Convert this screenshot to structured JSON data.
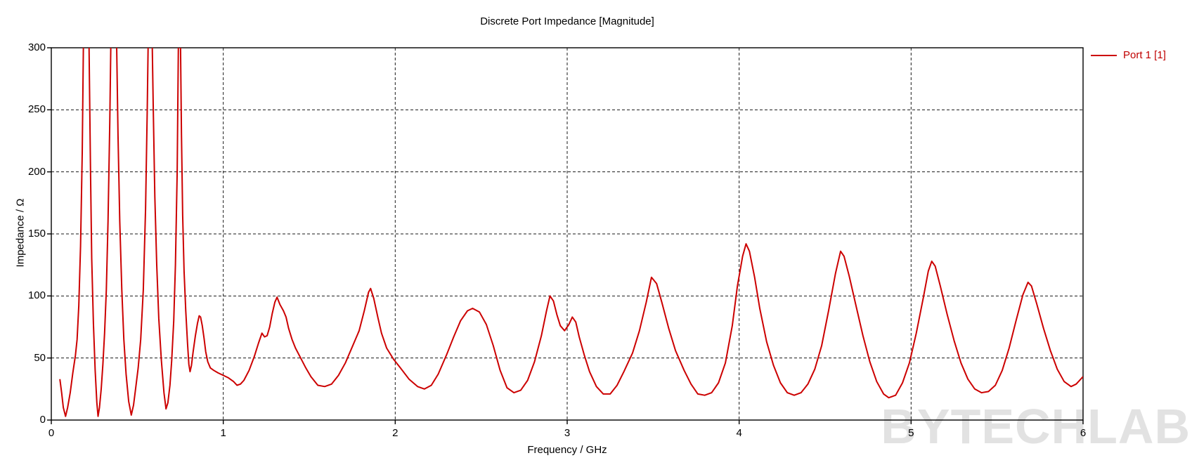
{
  "title": "Discrete Port Impedance [Magnitude]",
  "watermark": "BYTECHLAB",
  "watermark_color": "#e2e2e2",
  "legend": {
    "label": "Port 1 [1]",
    "text_color": "#c00000"
  },
  "chart_data": {
    "type": "line",
    "title": "Discrete Port Impedance [Magnitude]",
    "xlabel": "Frequency / GHz",
    "ylabel": "Impedance / Ω",
    "xlim": [
      0,
      6
    ],
    "ylim": [
      0,
      300
    ],
    "xticks": [
      0,
      1,
      2,
      3,
      4,
      5,
      6
    ],
    "yticks": [
      0,
      50,
      100,
      150,
      200,
      250,
      300
    ],
    "grid": true,
    "grid_style": "dashed",
    "grid_color": "#1a1a1a",
    "axis_color": "#000000",
    "legend_position": "top-right-outside",
    "series": [
      {
        "name": "Port 1 [1]",
        "color": "#cc0000",
        "points": [
          [
            0.05,
            33
          ],
          [
            0.06,
            22
          ],
          [
            0.07,
            10
          ],
          [
            0.083,
            3
          ],
          [
            0.095,
            10
          ],
          [
            0.11,
            22
          ],
          [
            0.125,
            38
          ],
          [
            0.14,
            52
          ],
          [
            0.15,
            65
          ],
          [
            0.16,
            92
          ],
          [
            0.17,
            140
          ],
          [
            0.18,
            215
          ],
          [
            0.188,
            320
          ],
          [
            0.218,
            320
          ],
          [
            0.228,
            200
          ],
          [
            0.235,
            130
          ],
          [
            0.245,
            78
          ],
          [
            0.255,
            40
          ],
          [
            0.265,
            14
          ],
          [
            0.272,
            3
          ],
          [
            0.28,
            10
          ],
          [
            0.29,
            25
          ],
          [
            0.3,
            45
          ],
          [
            0.31,
            70
          ],
          [
            0.32,
            105
          ],
          [
            0.33,
            160
          ],
          [
            0.34,
            240
          ],
          [
            0.348,
            320
          ],
          [
            0.378,
            320
          ],
          [
            0.388,
            230
          ],
          [
            0.398,
            160
          ],
          [
            0.41,
            105
          ],
          [
            0.422,
            65
          ],
          [
            0.435,
            37
          ],
          [
            0.45,
            15
          ],
          [
            0.465,
            4
          ],
          [
            0.478,
            12
          ],
          [
            0.49,
            25
          ],
          [
            0.505,
            42
          ],
          [
            0.52,
            65
          ],
          [
            0.535,
            105
          ],
          [
            0.548,
            170
          ],
          [
            0.558,
            250
          ],
          [
            0.565,
            320
          ],
          [
            0.585,
            320
          ],
          [
            0.593,
            250
          ],
          [
            0.602,
            180
          ],
          [
            0.613,
            125
          ],
          [
            0.625,
            82
          ],
          [
            0.64,
            48
          ],
          [
            0.655,
            22
          ],
          [
            0.667,
            9
          ],
          [
            0.678,
            14
          ],
          [
            0.69,
            28
          ],
          [
            0.7,
            48
          ],
          [
            0.712,
            80
          ],
          [
            0.722,
            125
          ],
          [
            0.732,
            200
          ],
          [
            0.74,
            320
          ],
          [
            0.75,
            320
          ],
          [
            0.757,
            230
          ],
          [
            0.764,
            165
          ],
          [
            0.772,
            120
          ],
          [
            0.782,
            88
          ],
          [
            0.792,
            62
          ],
          [
            0.8,
            45
          ],
          [
            0.807,
            39
          ],
          [
            0.815,
            44
          ],
          [
            0.825,
            55
          ],
          [
            0.838,
            68
          ],
          [
            0.85,
            78
          ],
          [
            0.86,
            84
          ],
          [
            0.868,
            83
          ],
          [
            0.878,
            76
          ],
          [
            0.888,
            66
          ],
          [
            0.898,
            55
          ],
          [
            0.91,
            47
          ],
          [
            0.925,
            42
          ],
          [
            0.945,
            40
          ],
          [
            0.97,
            38
          ],
          [
            1.0,
            36
          ],
          [
            1.03,
            34
          ],
          [
            1.06,
            31
          ],
          [
            1.08,
            28
          ],
          [
            1.1,
            29
          ],
          [
            1.12,
            32
          ],
          [
            1.15,
            40
          ],
          [
            1.18,
            51
          ],
          [
            1.205,
            62
          ],
          [
            1.225,
            70
          ],
          [
            1.24,
            67
          ],
          [
            1.255,
            68
          ],
          [
            1.27,
            75
          ],
          [
            1.285,
            86
          ],
          [
            1.3,
            95
          ],
          [
            1.313,
            99
          ],
          [
            1.33,
            93
          ],
          [
            1.35,
            88
          ],
          [
            1.365,
            83
          ],
          [
            1.38,
            74
          ],
          [
            1.4,
            65
          ],
          [
            1.42,
            58
          ],
          [
            1.45,
            50
          ],
          [
            1.48,
            42
          ],
          [
            1.51,
            35
          ],
          [
            1.55,
            28
          ],
          [
            1.59,
            27
          ],
          [
            1.63,
            29
          ],
          [
            1.67,
            36
          ],
          [
            1.71,
            46
          ],
          [
            1.75,
            59
          ],
          [
            1.79,
            72
          ],
          [
            1.82,
            88
          ],
          [
            1.845,
            103
          ],
          [
            1.857,
            106
          ],
          [
            1.875,
            98
          ],
          [
            1.9,
            82
          ],
          [
            1.92,
            70
          ],
          [
            1.95,
            58
          ],
          [
            1.99,
            49
          ],
          [
            2.03,
            42
          ],
          [
            2.08,
            33
          ],
          [
            2.13,
            27
          ],
          [
            2.17,
            25
          ],
          [
            2.21,
            28
          ],
          [
            2.25,
            37
          ],
          [
            2.3,
            53
          ],
          [
            2.34,
            67
          ],
          [
            2.38,
            80
          ],
          [
            2.42,
            88
          ],
          [
            2.45,
            90
          ],
          [
            2.49,
            87
          ],
          [
            2.53,
            77
          ],
          [
            2.57,
            60
          ],
          [
            2.61,
            40
          ],
          [
            2.65,
            26
          ],
          [
            2.69,
            22
          ],
          [
            2.73,
            24
          ],
          [
            2.77,
            32
          ],
          [
            2.81,
            47
          ],
          [
            2.85,
            68
          ],
          [
            2.88,
            88
          ],
          [
            2.9,
            100
          ],
          [
            2.92,
            96
          ],
          [
            2.94,
            85
          ],
          [
            2.96,
            76
          ],
          [
            2.985,
            72
          ],
          [
            3.01,
            77
          ],
          [
            3.03,
            83
          ],
          [
            3.05,
            79
          ],
          [
            3.07,
            67
          ],
          [
            3.1,
            52
          ],
          [
            3.13,
            39
          ],
          [
            3.17,
            27
          ],
          [
            3.21,
            21
          ],
          [
            3.25,
            21
          ],
          [
            3.29,
            28
          ],
          [
            3.33,
            39
          ],
          [
            3.38,
            54
          ],
          [
            3.42,
            72
          ],
          [
            3.46,
            95
          ],
          [
            3.49,
            115
          ],
          [
            3.52,
            110
          ],
          [
            3.55,
            95
          ],
          [
            3.59,
            74
          ],
          [
            3.63,
            56
          ],
          [
            3.68,
            40
          ],
          [
            3.72,
            29
          ],
          [
            3.76,
            21
          ],
          [
            3.8,
            20
          ],
          [
            3.84,
            22
          ],
          [
            3.88,
            30
          ],
          [
            3.92,
            46
          ],
          [
            3.96,
            76
          ],
          [
            3.99,
            108
          ],
          [
            4.02,
            132
          ],
          [
            4.04,
            142
          ],
          [
            4.06,
            136
          ],
          [
            4.09,
            115
          ],
          [
            4.12,
            90
          ],
          [
            4.16,
            63
          ],
          [
            4.2,
            44
          ],
          [
            4.24,
            30
          ],
          [
            4.28,
            22
          ],
          [
            4.32,
            20
          ],
          [
            4.36,
            22
          ],
          [
            4.4,
            29
          ],
          [
            4.44,
            41
          ],
          [
            4.48,
            60
          ],
          [
            4.52,
            88
          ],
          [
            4.56,
            118
          ],
          [
            4.59,
            136
          ],
          [
            4.61,
            132
          ],
          [
            4.64,
            116
          ],
          [
            4.68,
            92
          ],
          [
            4.72,
            68
          ],
          [
            4.76,
            47
          ],
          [
            4.8,
            31
          ],
          [
            4.84,
            21
          ],
          [
            4.87,
            18
          ],
          [
            4.91,
            20
          ],
          [
            4.95,
            30
          ],
          [
            4.99,
            46
          ],
          [
            5.03,
            70
          ],
          [
            5.07,
            98
          ],
          [
            5.1,
            120
          ],
          [
            5.12,
            128
          ],
          [
            5.14,
            124
          ],
          [
            5.17,
            108
          ],
          [
            5.21,
            85
          ],
          [
            5.25,
            64
          ],
          [
            5.29,
            46
          ],
          [
            5.33,
            33
          ],
          [
            5.37,
            25
          ],
          [
            5.41,
            22
          ],
          [
            5.45,
            23
          ],
          [
            5.49,
            28
          ],
          [
            5.53,
            40
          ],
          [
            5.57,
            58
          ],
          [
            5.61,
            80
          ],
          [
            5.65,
            101
          ],
          [
            5.68,
            111
          ],
          [
            5.7,
            108
          ],
          [
            5.73,
            94
          ],
          [
            5.77,
            74
          ],
          [
            5.81,
            56
          ],
          [
            5.85,
            41
          ],
          [
            5.89,
            31
          ],
          [
            5.93,
            27
          ],
          [
            5.96,
            29
          ],
          [
            6.0,
            35
          ]
        ]
      }
    ]
  }
}
